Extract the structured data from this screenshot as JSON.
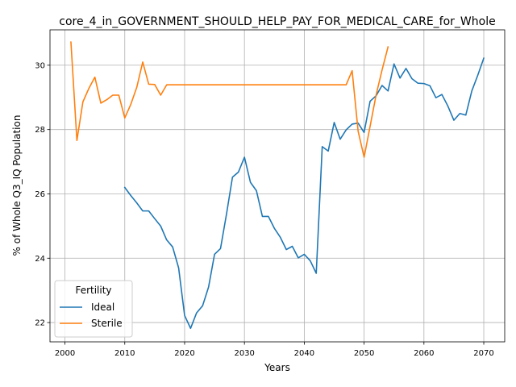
{
  "chart_data": {
    "type": "line",
    "title": "core_4_in_GOVERNMENT_SHOULD_HELP_PAY_FOR_MEDICAL_CARE_for_Whole",
    "xlabel": "Years",
    "ylabel": "% of Whole Q3_IQ Population",
    "xlim": [
      1997.5,
      2073.5
    ],
    "ylim": [
      21.4,
      31.1
    ],
    "xticks": [
      2000,
      2010,
      2020,
      2030,
      2040,
      2050,
      2060,
      2070
    ],
    "yticks": [
      22,
      24,
      26,
      28,
      30
    ],
    "grid": true,
    "legend": {
      "title": "Fertility",
      "placement": "lower-left"
    },
    "series": [
      {
        "name": "Ideal",
        "color": "#1f77b4",
        "x": [
          2010,
          2011,
          2012,
          2013,
          2014,
          2015,
          2016,
          2017,
          2018,
          2019,
          2020,
          2021,
          2022,
          2023,
          2024,
          2025,
          2026,
          2027,
          2028,
          2029,
          2030,
          2031,
          2032,
          2033,
          2034,
          2035,
          2036,
          2037,
          2038,
          2039,
          2040,
          2041,
          2042,
          2043,
          2044,
          2045,
          2046,
          2047,
          2048,
          2049,
          2050,
          2051,
          2052,
          2053,
          2054,
          2055,
          2056,
          2057,
          2058,
          2059,
          2060,
          2061,
          2062,
          2063,
          2064,
          2065,
          2066,
          2067,
          2068,
          2069,
          2070
        ],
        "values": [
          26.2,
          25.95,
          25.72,
          25.47,
          25.47,
          25.23,
          25.0,
          24.57,
          24.35,
          23.7,
          22.22,
          21.82,
          22.3,
          22.52,
          23.1,
          24.12,
          24.3,
          25.37,
          26.52,
          26.68,
          27.14,
          26.36,
          26.1,
          25.3,
          25.3,
          24.93,
          24.65,
          24.27,
          24.37,
          24.01,
          24.12,
          23.92,
          23.53,
          27.47,
          27.33,
          28.22,
          27.7,
          27.99,
          28.17,
          28.2,
          27.91,
          28.88,
          29.05,
          29.37,
          29.2,
          30.04,
          29.6,
          29.9,
          29.58,
          29.44,
          29.43,
          29.36,
          28.99,
          29.09,
          28.73,
          28.29,
          28.5,
          28.45,
          29.2,
          29.69,
          30.22
        ]
      },
      {
        "name": "Sterile",
        "color": "#ff7f0e",
        "x": [
          2001,
          2002,
          2003,
          2004,
          2005,
          2006,
          2007,
          2008,
          2009,
          2010,
          2011,
          2012,
          2013,
          2014,
          2015,
          2016,
          2017,
          2018,
          2019,
          2020,
          2021,
          2022,
          2023,
          2024,
          2025,
          2026,
          2027,
          2028,
          2029,
          2030,
          2031,
          2032,
          2033,
          2034,
          2035,
          2036,
          2037,
          2038,
          2039,
          2040,
          2041,
          2042,
          2043,
          2044,
          2045,
          2046,
          2047,
          2048,
          2049,
          2050,
          2051,
          2052,
          2053,
          2054
        ],
        "values": [
          30.72,
          27.66,
          28.86,
          29.28,
          29.63,
          28.82,
          28.93,
          29.07,
          29.07,
          28.36,
          28.78,
          29.31,
          30.1,
          29.41,
          29.4,
          29.07,
          29.39,
          29.39,
          29.39,
          29.39,
          29.39,
          29.39,
          29.39,
          29.39,
          29.39,
          29.39,
          29.39,
          29.39,
          29.39,
          29.39,
          29.39,
          29.39,
          29.39,
          29.39,
          29.39,
          29.39,
          29.39,
          29.39,
          29.39,
          29.39,
          29.39,
          29.39,
          29.39,
          29.39,
          29.39,
          29.39,
          29.39,
          29.83,
          27.95,
          27.14,
          28.1,
          29.07,
          29.85,
          30.57
        ]
      }
    ]
  }
}
